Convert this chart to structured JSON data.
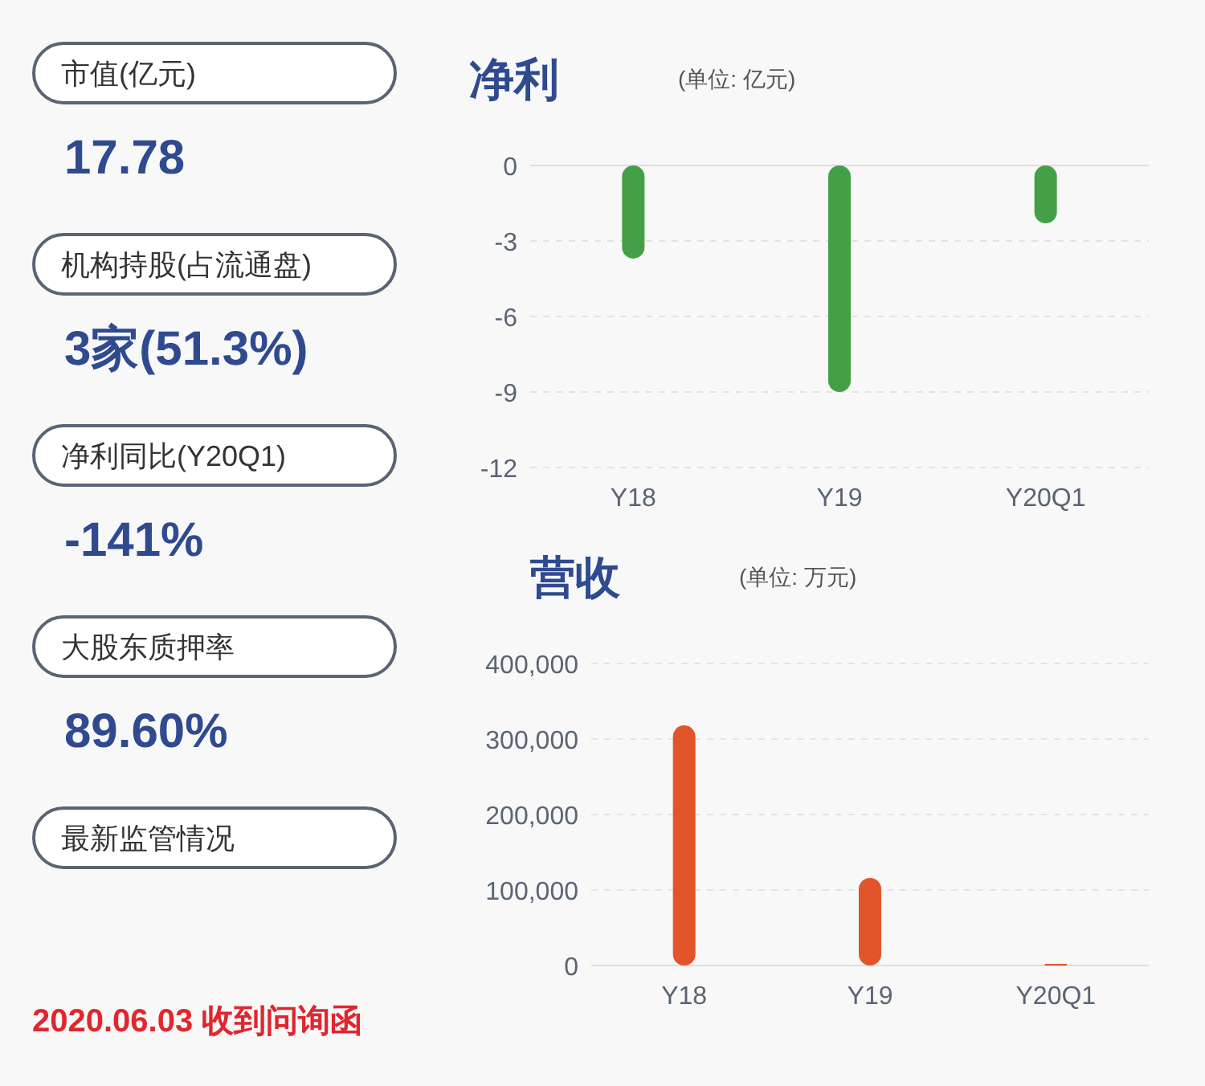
{
  "chart_data": [
    {
      "type": "other",
      "annotations": [
        "市值(亿元)",
        "17.78",
        "机构持股(占流通盘)",
        "3家(51.3%)",
        "净利同比(Y20Q1)",
        "-141%",
        "大股东质押率",
        "89.60%",
        "最新监管情况",
        "2020.06.03 收到问询函"
      ]
    },
    {
      "type": "bar",
      "title": "净利",
      "subtitle": "(单位: 亿元)",
      "categories": [
        "Y18",
        "Y19",
        "Y20Q1"
      ],
      "values": [
        -3.7,
        -9.0,
        -2.3
      ],
      "color": "#44a047",
      "ylim": [
        -12,
        0
      ],
      "yticks": [
        -12,
        -9,
        -6,
        -3,
        0
      ],
      "grid": "y"
    },
    {
      "type": "bar",
      "title": "营收",
      "subtitle": "(单位: 万元)",
      "categories": [
        "Y18",
        "Y19",
        "Y20Q1"
      ],
      "values": [
        318000,
        116000,
        2000
      ],
      "color": "#e2542a",
      "ylim": [
        0,
        400000
      ],
      "yticks": [
        0,
        {
          "value": 100000,
          "label": "100,000"
        },
        {
          "value": 200000,
          "label": "200,000"
        },
        {
          "value": 300000,
          "label": "300,000"
        },
        {
          "value": 400000,
          "label": "400,000"
        }
      ],
      "grid": "y"
    }
  ]
}
